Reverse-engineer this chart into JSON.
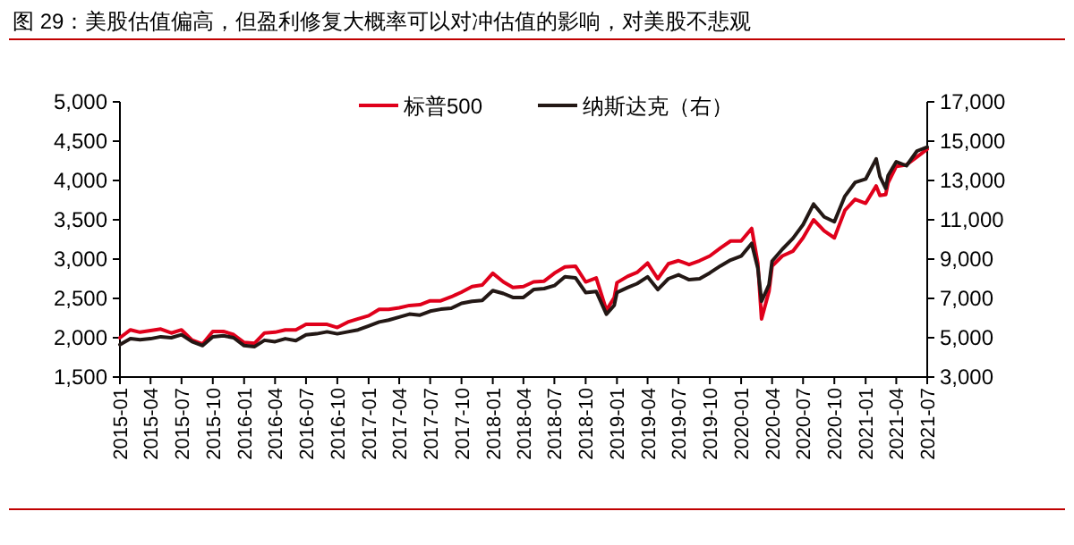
{
  "chart_data": {
    "type": "line",
    "title": "图 29：美股估值偏高，但盈利修复大概率可以对冲估值的影响，对美股不悲观",
    "y2label": null,
    "legend": "top",
    "grid": false,
    "line_style": "solid",
    "xlim": [
      "2015-01",
      "2021-07"
    ],
    "xticks": [
      "2015-01",
      "2015-04",
      "2015-07",
      "2015-10",
      "2016-01",
      "2016-04",
      "2016-07",
      "2016-10",
      "2017-01",
      "2017-04",
      "2017-07",
      "2017-10",
      "2018-01",
      "2018-04",
      "2018-07",
      "2018-10",
      "2019-01",
      "2019-04",
      "2019-07",
      "2019-10",
      "2020-01",
      "2020-04",
      "2020-07",
      "2020-10",
      "2021-01",
      "2021-04",
      "2021-07"
    ],
    "ylim": [
      1500,
      5000
    ],
    "yticks": [
      {
        "value": 1500,
        "label": "1,500"
      },
      {
        "value": 2000,
        "label": "2,000"
      },
      {
        "value": 2500,
        "label": "2,500"
      },
      {
        "value": 3000,
        "label": "3,000"
      },
      {
        "value": 3500,
        "label": "3,500"
      },
      {
        "value": 4000,
        "label": "4,000"
      },
      {
        "value": 4500,
        "label": "4,500"
      },
      {
        "value": 5000,
        "label": "5,000"
      }
    ],
    "y2lim": [
      3000,
      17000
    ],
    "y2ticks": [
      {
        "value": 3000,
        "label": "3,000"
      },
      {
        "value": 5000,
        "label": "5,000"
      },
      {
        "value": 7000,
        "label": "7,000"
      },
      {
        "value": 9000,
        "label": "9,000"
      },
      {
        "value": 11000,
        "label": "11,000"
      },
      {
        "value": 13000,
        "label": "13,000"
      },
      {
        "value": 15000,
        "label": "15,000"
      },
      {
        "value": 17000,
        "label": "17,000"
      }
    ],
    "x": [
      "2015-01",
      "2015-02",
      "2015-03",
      "2015-04",
      "2015-05",
      "2015-06",
      "2015-07",
      "2015-08",
      "2015-09",
      "2015-10",
      "2015-11",
      "2015-12",
      "2016-01",
      "2016-02",
      "2016-03",
      "2016-04",
      "2016-05",
      "2016-06",
      "2016-07",
      "2016-08",
      "2016-09",
      "2016-10",
      "2016-11",
      "2016-12",
      "2017-01",
      "2017-02",
      "2017-03",
      "2017-04",
      "2017-05",
      "2017-06",
      "2017-07",
      "2017-08",
      "2017-09",
      "2017-10",
      "2017-11",
      "2017-12",
      "2018-01",
      "2018-02",
      "2018-03",
      "2018-04",
      "2018-05",
      "2018-06",
      "2018-07",
      "2018-08",
      "2018-09",
      "2018-10",
      "2018-11",
      "2018-12",
      "2018-12-24",
      "2019-01",
      "2019-02",
      "2019-03",
      "2019-04",
      "2019-05",
      "2019-06",
      "2019-07",
      "2019-08",
      "2019-09",
      "2019-10",
      "2019-11",
      "2019-12",
      "2020-01",
      "2020-02",
      "2020-02-19",
      "2020-03",
      "2020-03-23",
      "2020-04",
      "2020-05",
      "2020-06",
      "2020-07",
      "2020-08",
      "2020-09",
      "2020-10",
      "2020-11",
      "2020-12",
      "2021-01",
      "2021-02",
      "2021-02-12",
      "2021-03",
      "2021-03-08",
      "2021-04",
      "2021-05",
      "2021-06",
      "2021-07"
    ],
    "series": [
      {
        "name": "标普500",
        "color": "#e0001b",
        "values": [
          2000,
          2100,
          2070,
          2090,
          2110,
          2060,
          2100,
          1970,
          1920,
          2080,
          2080,
          2040,
          1940,
          1930,
          2060,
          2070,
          2100,
          2100,
          2170,
          2170,
          2170,
          2130,
          2200,
          2240,
          2280,
          2360,
          2360,
          2380,
          2410,
          2420,
          2470,
          2470,
          2520,
          2580,
          2650,
          2670,
          2820,
          2710,
          2640,
          2650,
          2710,
          2720,
          2820,
          2900,
          2910,
          2710,
          2760,
          2350,
          2510,
          2700,
          2780,
          2830,
          2950,
          2750,
          2940,
          2980,
          2930,
          2980,
          3040,
          3140,
          3230,
          3230,
          3390,
          2950,
          2240,
          2590,
          2910,
          3040,
          3100,
          3270,
          3500,
          3360,
          3270,
          3620,
          3760,
          3710,
          3930,
          3810,
          3820,
          3970,
          4180,
          4200,
          4300,
          4400
        ]
      },
      {
        "name": "纳斯达克（右）",
        "color": "#231815",
        "axis": "y2",
        "values": [
          4650,
          4950,
          4900,
          4950,
          5050,
          5000,
          5150,
          4800,
          4600,
          5050,
          5100,
          5000,
          4600,
          4550,
          4870,
          4800,
          4950,
          4850,
          5150,
          5200,
          5300,
          5200,
          5300,
          5400,
          5600,
          5800,
          5900,
          6050,
          6200,
          6150,
          6350,
          6450,
          6500,
          6750,
          6850,
          6900,
          7400,
          7250,
          7050,
          7050,
          7450,
          7500,
          7650,
          8100,
          8050,
          7300,
          7350,
          6200,
          6650,
          7300,
          7550,
          7750,
          8100,
          7450,
          8000,
          8200,
          7950,
          8000,
          8300,
          8650,
          8950,
          9150,
          9800,
          8550,
          6850,
          7700,
          8900,
          9500,
          10050,
          10750,
          11800,
          11150,
          10900,
          12200,
          12900,
          13070,
          14100,
          13200,
          12600,
          13250,
          13950,
          13750,
          14500,
          14700
        ]
      }
    ]
  }
}
